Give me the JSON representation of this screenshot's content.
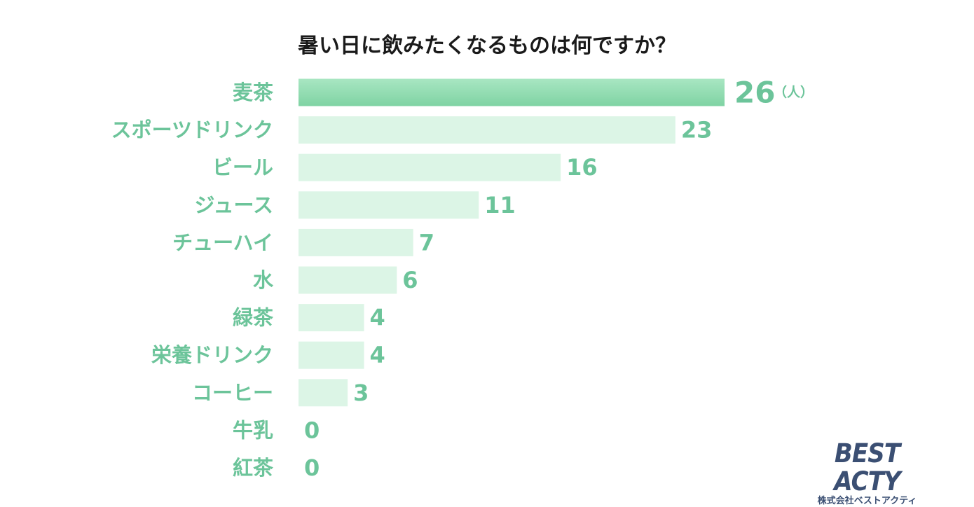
{
  "chart_data": {
    "type": "bar",
    "orientation": "horizontal",
    "title": "暑い日に飲みたくなるものは何ですか？",
    "unit": "（人）",
    "categories": [
      "麦茶",
      "スポーツドリンク",
      "ビール",
      "ジュース",
      "チューハイ",
      "水",
      "緑茶",
      "栄養ドリンク",
      "コーヒー",
      "牛乳",
      "紅茶"
    ],
    "values": [
      26,
      23,
      16,
      11,
      7,
      6,
      4,
      4,
      3,
      0,
      0
    ],
    "xlim": [
      0,
      26
    ],
    "grid": false,
    "legend": "none",
    "colors": {
      "highlight_bar": "#8ad8ab",
      "bar": "#dcf5e6",
      "label": "#6cc49a",
      "title": "#1a1a1a"
    }
  },
  "logo": {
    "name": "BEST ACTY",
    "company": "株式会社ベストアクティ"
  }
}
